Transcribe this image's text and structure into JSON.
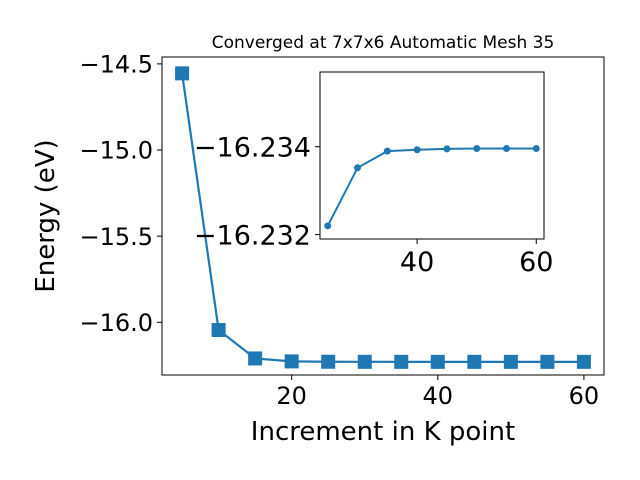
{
  "chart_data": [
    {
      "type": "line",
      "title": "Converged at 7x7x6 Automatic Mesh 35",
      "xlabel": "Increment in K point",
      "ylabel": "Energy (eV)",
      "xlim": [
        2.25,
        62.75
      ],
      "ylim": [
        -16.306,
        -14.46
      ],
      "xticks": [
        20,
        40,
        60
      ],
      "xtick_labels": [
        "20",
        "40",
        "60"
      ],
      "yticks": [
        -16.0,
        -15.5,
        -15.0,
        -14.5
      ],
      "ytick_labels": [
        "−16.0",
        "−15.5",
        "−15.0",
        "−14.5"
      ],
      "grid": false,
      "marker": "square",
      "color": "#1f77b4",
      "series": [
        {
          "x": [
            5,
            10,
            15,
            20,
            25,
            30,
            35,
            40,
            45,
            50,
            55,
            60
          ],
          "y": [
            -14.555,
            -16.045,
            -16.21,
            -16.227,
            -16.229,
            -16.2295,
            -16.2296,
            -16.2296,
            -16.2296,
            -16.2296,
            -16.2296,
            -16.2296
          ]
        }
      ]
    },
    {
      "type": "line",
      "title": "",
      "xlabel": "",
      "ylabel": "",
      "xlim": [
        23.7,
        61.3
      ],
      "ylim": [
        -16.2319,
        -16.2357
      ],
      "xticks": [
        40,
        60
      ],
      "xtick_labels": [
        "40",
        "60"
      ],
      "yticks": [
        -16.234,
        -16.232
      ],
      "ytick_labels": [
        "−16.234",
        "−16.232"
      ],
      "grid": false,
      "marker": "circle",
      "color": "#1f77b4",
      "series": [
        {
          "x": [
            25,
            30,
            35,
            40,
            45,
            50,
            55,
            60
          ],
          "y": [
            -16.2322,
            -16.23352,
            -16.2339,
            -16.23393,
            -16.23395,
            -16.23396,
            -16.23396,
            -16.23396
          ]
        }
      ]
    }
  ]
}
